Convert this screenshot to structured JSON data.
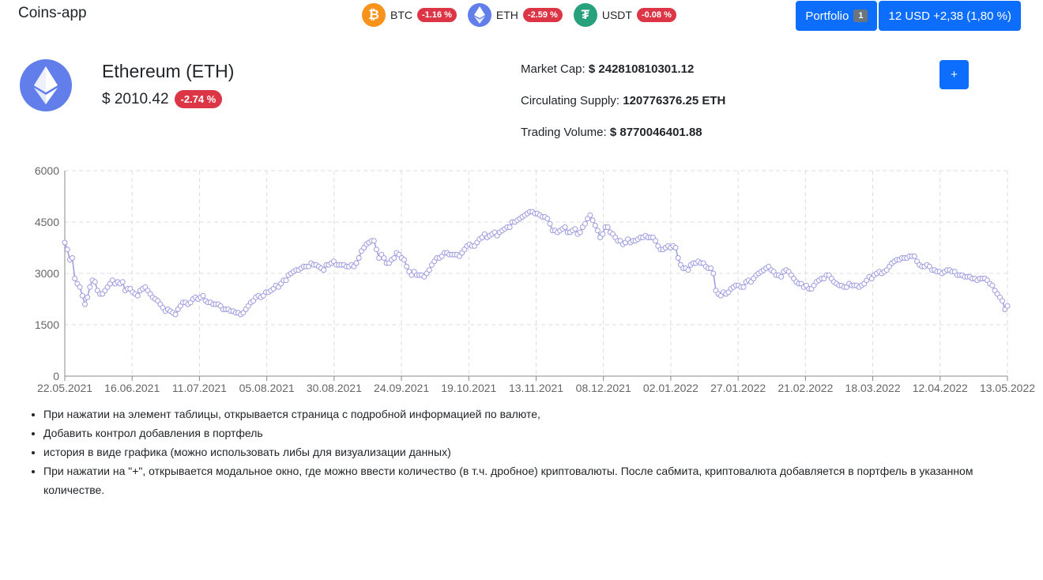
{
  "app": {
    "title": "Coins-app"
  },
  "ticker": [
    {
      "symbol": "BTC",
      "change": "-1.16 %",
      "icon": "bitcoin-icon",
      "color": "#f7931a"
    },
    {
      "symbol": "ETH",
      "change": "-2.59 %",
      "icon": "ethereum-icon",
      "color": "#627eea"
    },
    {
      "symbol": "USDT",
      "change": "-0.08 %",
      "icon": "tether-icon",
      "color": "#26a17b"
    }
  ],
  "header": {
    "portfolio_label": "Portfolio",
    "portfolio_count": "1",
    "balance": "12 USD +2,38 (1,80 %)"
  },
  "coin": {
    "name": "Ethereum (ETH)",
    "price": "$ 2010.42",
    "change": "-2.74 %",
    "market_cap_label": "Market Cap:",
    "market_cap": "$ 242810810301.12",
    "supply_label": "Circulating Supply:",
    "supply": "120776376.25 ETH",
    "volume_label": "Trading Volume:",
    "volume": "$ 8770046401.88",
    "add_label": "+"
  },
  "notes": [
    "При нажатии на элемент таблицы, открывается страница с подробной информацией по валюте,",
    "Добавить контрол добавления в портфель",
    "история в виде графика (можно использовать либы для визуализации данных)",
    "При нажатии на \"+\", открывается модальное окно, где можно ввести количество (в т.ч. дробное) криптовалюты. После сабмита, криптовалюта добавляется в портфель в указанном количестве."
  ],
  "colors": {
    "accent": "#0d6efd",
    "negative": "#dc3545",
    "series": "#9d9be0",
    "grid": "#dddddd"
  },
  "chart_data": {
    "type": "line",
    "grid": true,
    "ylim": [
      0,
      6000
    ],
    "yticks": [
      "0",
      "1500",
      "3000",
      "4500",
      "6000"
    ],
    "x_tick_labels": [
      "22.05.2021",
      "16.06.2021",
      "11.07.2021",
      "05.08.2021",
      "30.08.2021",
      "24.09.2021",
      "19.10.2021",
      "13.11.2021",
      "08.12.2021",
      "02.01.2022",
      "27.01.2022",
      "21.02.2022",
      "18.03.2022",
      "12.04.2022",
      "13.05.2022"
    ],
    "x_start": "22.05.2021",
    "x_end": "13.05.2022",
    "series": [
      {
        "values": [
          3900,
          3700,
          3400,
          3450,
          2850,
          2700,
          2600,
          2350,
          2100,
          2300,
          2600,
          2800,
          2750,
          2500,
          2400,
          2400,
          2500,
          2600,
          2700,
          2800,
          2700,
          2750,
          2700,
          2750,
          2500,
          2550,
          2550,
          2450,
          2400,
          2350,
          2500,
          2550,
          2600,
          2500,
          2400,
          2300,
          2250,
          2200,
          2100,
          2000,
          1900,
          1950,
          1900,
          1850,
          1800,
          1950,
          2050,
          2150,
          2150,
          2100,
          2150,
          2250,
          2300,
          2250,
          2300,
          2350,
          2200,
          2150,
          2150,
          2100,
          2100,
          2100,
          2050,
          1950,
          1950,
          1950,
          1900,
          1900,
          1850,
          1850,
          1800,
          1850,
          1950,
          2050,
          2150,
          2200,
          2300,
          2350,
          2300,
          2350,
          2450,
          2450,
          2500,
          2550,
          2650,
          2600,
          2700,
          2800,
          2800,
          2950,
          3000,
          3050,
          3100,
          3100,
          3150,
          3200,
          3200,
          3200,
          3300,
          3250,
          3250,
          3200,
          3150,
          3100,
          3250,
          3250,
          3300,
          3350,
          3250,
          3250,
          3250,
          3250,
          3200,
          3200,
          3250,
          3200,
          3300,
          3450,
          3650,
          3750,
          3850,
          3900,
          3950,
          3950,
          3700,
          3450,
          3550,
          3450,
          3300,
          3300,
          3400,
          3450,
          3600,
          3550,
          3450,
          3400,
          3200,
          3050,
          2950,
          3050,
          2950,
          2950,
          2950,
          2900,
          3000,
          3100,
          3250,
          3350,
          3450,
          3450,
          3500,
          3600,
          3600,
          3550,
          3550,
          3550,
          3550,
          3500,
          3600,
          3700,
          3800,
          3850,
          3800,
          3800,
          3900,
          4000,
          4050,
          4150,
          4050,
          4100,
          4150,
          4200,
          4100,
          4200,
          4250,
          4300,
          4350,
          4350,
          4500,
          4500,
          4550,
          4600,
          4650,
          4700,
          4750,
          4800,
          4800,
          4750,
          4750,
          4700,
          4650,
          4650,
          4600,
          4450,
          4250,
          4250,
          4200,
          4250,
          4300,
          4350,
          4200,
          4200,
          4250,
          4300,
          4150,
          4200,
          4350,
          4450,
          4600,
          4700,
          4550,
          4400,
          4250,
          4050,
          4150,
          4350,
          4350,
          4200,
          4150,
          4050,
          3950,
          3950,
          3850,
          3900,
          4000,
          3900,
          3950,
          3950,
          4000,
          4050,
          4050,
          4100,
          4050,
          4050,
          4050,
          3950,
          3800,
          3700,
          3700,
          3750,
          3800,
          3750,
          3800,
          3750,
          3450,
          3250,
          3150,
          3150,
          3100,
          3250,
          3300,
          3300,
          3350,
          3300,
          3300,
          3200,
          3150,
          3150,
          3000,
          2500,
          2400,
          2350,
          2450,
          2400,
          2450,
          2550,
          2600,
          2650,
          2650,
          2600,
          2600,
          2750,
          2800,
          2750,
          2850,
          2950,
          3000,
          3050,
          3100,
          3150,
          3200,
          3100,
          3050,
          2950,
          2950,
          2900,
          3050,
          3100,
          3050,
          2950,
          2850,
          2750,
          2700,
          2700,
          2600,
          2650,
          2550,
          2550,
          2650,
          2750,
          2800,
          2850,
          2850,
          2950,
          2950,
          2850,
          2750,
          2700,
          2650,
          2650,
          2600,
          2600,
          2700,
          2650,
          2650,
          2650,
          2600,
          2650,
          2700,
          2800,
          2900,
          2850,
          2950,
          3000,
          3050,
          3000,
          3050,
          3100,
          3200,
          3300,
          3350,
          3400,
          3400,
          3450,
          3450,
          3450,
          3500,
          3500,
          3500,
          3350,
          3250,
          3200,
          3200,
          3250,
          3200,
          3100,
          3100,
          3050,
          3050,
          3000,
          3050,
          3100,
          3100,
          3050,
          3050,
          2950,
          2950,
          2950,
          2900,
          2900,
          2900,
          2850,
          2850,
          2800,
          2850,
          2850,
          2850,
          2800,
          2700,
          2650,
          2500,
          2400,
          2300,
          2200,
          1950,
          2050
        ]
      }
    ]
  }
}
